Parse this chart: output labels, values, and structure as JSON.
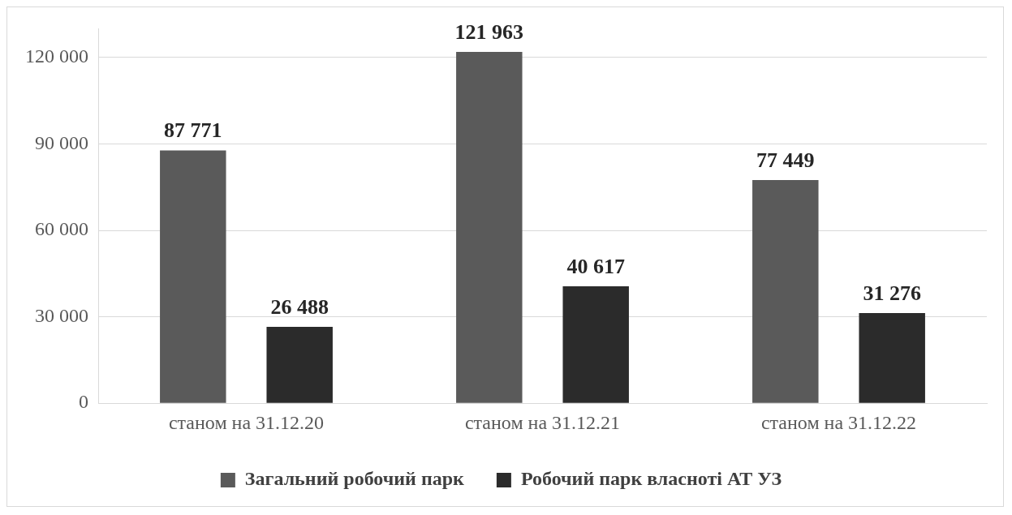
{
  "chart_data": {
    "type": "bar",
    "categories": [
      "станом на 31.12.20",
      "станом на 31.12.21",
      "станом на 31.12.22"
    ],
    "series": [
      {
        "name": "Загальний робочий парк",
        "color": "#5a5a5a",
        "values": [
          87771,
          121963,
          77449
        ],
        "value_labels": [
          "87 771",
          "121 963",
          "77 449"
        ]
      },
      {
        "name": "Робочий парк власноті АТ УЗ",
        "color": "#2b2b2b",
        "values": [
          26488,
          40617,
          31276
        ],
        "value_labels": [
          "26 488",
          "40 617",
          "31 276"
        ]
      }
    ],
    "ylim": [
      0,
      130000
    ],
    "yticks": [
      {
        "value": 0,
        "label": "0"
      },
      {
        "value": 30000,
        "label": "30 000"
      },
      {
        "value": 60000,
        "label": "60 000"
      },
      {
        "value": 90000,
        "label": "90 000"
      },
      {
        "value": 120000,
        "label": "120 000"
      }
    ],
    "grid": "y",
    "legend": "bottom"
  }
}
